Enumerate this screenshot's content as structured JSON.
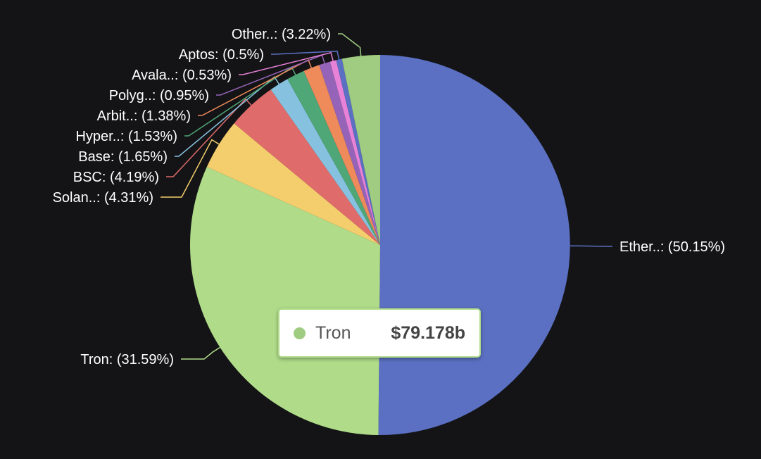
{
  "chart_data": {
    "type": "pie",
    "title": "",
    "start_angle_deg": 0,
    "direction": "clockwise",
    "slices": [
      {
        "name": "Ether..",
        "label": "Ether..: (50.15%)",
        "value": 50.15,
        "color": "#5b70c2"
      },
      {
        "name": "Tron",
        "label": "Tron: (31.59%)",
        "value": 31.59,
        "color": "#b0dc8a"
      },
      {
        "name": "Solan..",
        "label": "Solan..: (4.31%)",
        "value": 4.31,
        "color": "#f4cd6c"
      },
      {
        "name": "BSC",
        "label": "BSC: (4.19%)",
        "value": 4.19,
        "color": "#e06b6b"
      },
      {
        "name": "Base",
        "label": "Base: (1.65%)",
        "value": 1.65,
        "color": "#86c2e0"
      },
      {
        "name": "Hyper..",
        "label": "Hyper..: (1.53%)",
        "value": 1.53,
        "color": "#4fa676"
      },
      {
        "name": "Arbit..",
        "label": "Arbit..: (1.38%)",
        "value": 1.38,
        "color": "#ef8a5a"
      },
      {
        "name": "Polyg..",
        "label": "Polyg..: (0.95%)",
        "value": 0.95,
        "color": "#9564b8"
      },
      {
        "name": "Avala..",
        "label": "Avala..: (0.53%)",
        "value": 0.53,
        "color": "#e881d8"
      },
      {
        "name": "Aptos",
        "label": "Aptos: (0.5%)",
        "value": 0.5,
        "color": "#5b70c2"
      },
      {
        "name": "Other..",
        "label": "Other..: (3.22%)",
        "value": 3.22,
        "color": "#9fcc80"
      }
    ],
    "tooltip": {
      "series": "Tron",
      "value": "$79.178b",
      "color": "#9fcc80"
    }
  }
}
